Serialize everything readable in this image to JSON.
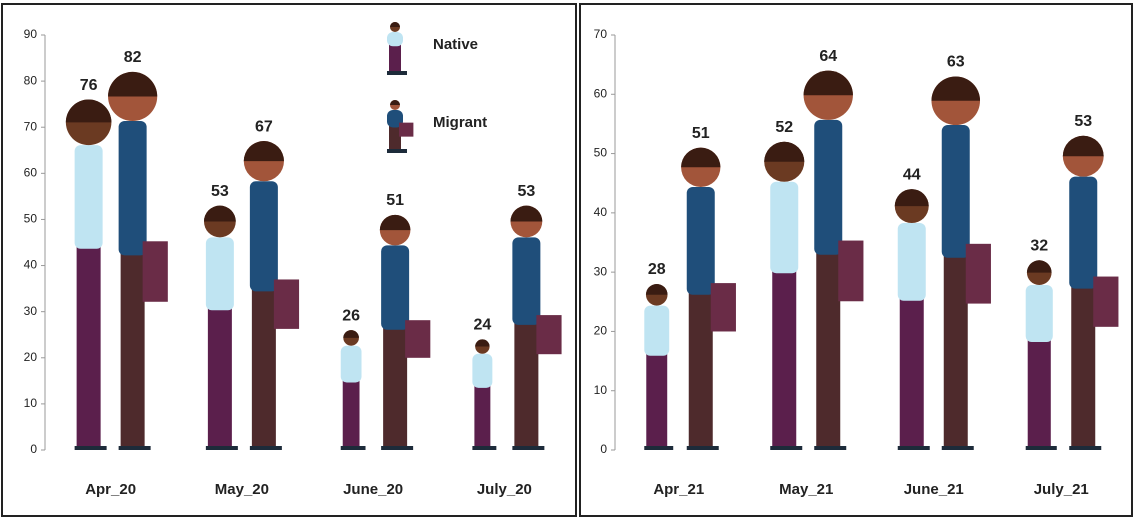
{
  "chart_data": [
    {
      "type": "bar",
      "categories": [
        "Apr_20",
        "May_20",
        "June_20",
        "July_20"
      ],
      "series": [
        {
          "name": "Native",
          "color": "#bfe4f2",
          "values": [
            76,
            53,
            26,
            24
          ]
        },
        {
          "name": "Migrant",
          "color": "#1f4e7a",
          "values": [
            82,
            67,
            51,
            53
          ]
        }
      ],
      "ylim": [
        0,
        90
      ],
      "yticks": [
        0,
        10,
        20,
        30,
        40,
        50,
        60,
        70,
        80,
        90
      ]
    },
    {
      "type": "bar",
      "categories": [
        "Apr_21",
        "May_21",
        "June_21",
        "July_21"
      ],
      "series": [
        {
          "color": "#bfe4f2",
          "values": [
            28,
            52,
            44,
            32
          ]
        },
        {
          "color": "#1f4e7a",
          "values": [
            51,
            64,
            63,
            53
          ]
        }
      ],
      "ylim": [
        0,
        70
      ],
      "yticks": [
        0,
        10,
        20,
        30,
        40,
        50,
        60,
        70
      ]
    }
  ]
}
